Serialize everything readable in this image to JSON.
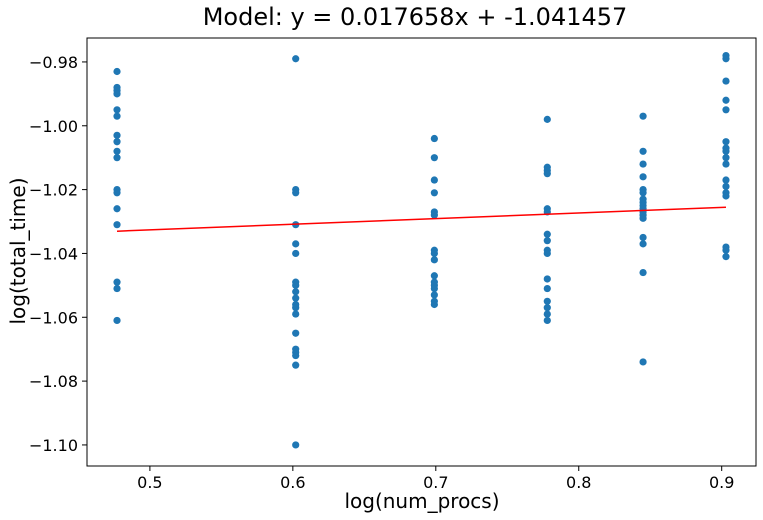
{
  "chart_data": {
    "type": "scatter",
    "title": "Model: y = 0.017658x + -1.041457",
    "xlabel": "log(num_procs)",
    "ylabel": "log(total_time)",
    "xlim": [
      0.456,
      0.924
    ],
    "ylim": [
      -1.1066,
      -0.9725
    ],
    "xticks": [
      0.5,
      0.6,
      0.7,
      0.8,
      0.9
    ],
    "xtick_labels": [
      "0.5",
      "0.6",
      "0.7",
      "0.8",
      "0.9"
    ],
    "yticks": [
      -1.1,
      -1.08,
      -1.06,
      -1.04,
      -1.02,
      -1.0,
      -0.98
    ],
    "ytick_labels": [
      "−1.10",
      "−1.08",
      "−1.06",
      "−1.04",
      "−1.02",
      "−1.00",
      "−0.98"
    ],
    "grid": false,
    "colors": {
      "points": "#1f77b4",
      "fit_line": "#ff0000"
    },
    "fit_line": {
      "slope": 0.017658,
      "intercept": -1.041457,
      "x": [
        0.477,
        0.903
      ]
    },
    "series": [
      {
        "type": "scatter",
        "points": [
          {
            "x": 0.477,
            "y": -0.983
          },
          {
            "x": 0.477,
            "y": -0.988
          },
          {
            "x": 0.477,
            "y": -0.989
          },
          {
            "x": 0.477,
            "y": -0.99
          },
          {
            "x": 0.477,
            "y": -0.995
          },
          {
            "x": 0.477,
            "y": -0.997
          },
          {
            "x": 0.477,
            "y": -1.003
          },
          {
            "x": 0.477,
            "y": -1.005
          },
          {
            "x": 0.477,
            "y": -1.008
          },
          {
            "x": 0.477,
            "y": -1.01
          },
          {
            "x": 0.477,
            "y": -1.02
          },
          {
            "x": 0.477,
            "y": -1.021
          },
          {
            "x": 0.477,
            "y": -1.026
          },
          {
            "x": 0.477,
            "y": -1.031
          },
          {
            "x": 0.477,
            "y": -1.049
          },
          {
            "x": 0.477,
            "y": -1.051
          },
          {
            "x": 0.477,
            "y": -1.061
          },
          {
            "x": 0.602,
            "y": -0.979
          },
          {
            "x": 0.602,
            "y": -1.02
          },
          {
            "x": 0.602,
            "y": -1.021
          },
          {
            "x": 0.602,
            "y": -1.031
          },
          {
            "x": 0.602,
            "y": -1.037
          },
          {
            "x": 0.602,
            "y": -1.04
          },
          {
            "x": 0.602,
            "y": -1.049
          },
          {
            "x": 0.602,
            "y": -1.05
          },
          {
            "x": 0.602,
            "y": -1.052
          },
          {
            "x": 0.602,
            "y": -1.054
          },
          {
            "x": 0.602,
            "y": -1.056
          },
          {
            "x": 0.602,
            "y": -1.057
          },
          {
            "x": 0.602,
            "y": -1.059
          },
          {
            "x": 0.602,
            "y": -1.065
          },
          {
            "x": 0.602,
            "y": -1.07
          },
          {
            "x": 0.602,
            "y": -1.071
          },
          {
            "x": 0.602,
            "y": -1.072
          },
          {
            "x": 0.602,
            "y": -1.075
          },
          {
            "x": 0.602,
            "y": -1.1
          },
          {
            "x": 0.699,
            "y": -1.004
          },
          {
            "x": 0.699,
            "y": -1.01
          },
          {
            "x": 0.699,
            "y": -1.017
          },
          {
            "x": 0.699,
            "y": -1.021
          },
          {
            "x": 0.699,
            "y": -1.027
          },
          {
            "x": 0.699,
            "y": -1.028
          },
          {
            "x": 0.699,
            "y": -1.039
          },
          {
            "x": 0.699,
            "y": -1.04
          },
          {
            "x": 0.699,
            "y": -1.042
          },
          {
            "x": 0.699,
            "y": -1.047
          },
          {
            "x": 0.699,
            "y": -1.049
          },
          {
            "x": 0.699,
            "y": -1.05
          },
          {
            "x": 0.699,
            "y": -1.051
          },
          {
            "x": 0.699,
            "y": -1.053
          },
          {
            "x": 0.699,
            "y": -1.055
          },
          {
            "x": 0.699,
            "y": -1.056
          },
          {
            "x": 0.778,
            "y": -0.998
          },
          {
            "x": 0.778,
            "y": -1.013
          },
          {
            "x": 0.778,
            "y": -1.014
          },
          {
            "x": 0.778,
            "y": -1.015
          },
          {
            "x": 0.778,
            "y": -1.026
          },
          {
            "x": 0.778,
            "y": -1.027
          },
          {
            "x": 0.778,
            "y": -1.034
          },
          {
            "x": 0.778,
            "y": -1.036
          },
          {
            "x": 0.778,
            "y": -1.039
          },
          {
            "x": 0.778,
            "y": -1.04
          },
          {
            "x": 0.778,
            "y": -1.048
          },
          {
            "x": 0.778,
            "y": -1.051
          },
          {
            "x": 0.778,
            "y": -1.055
          },
          {
            "x": 0.778,
            "y": -1.057
          },
          {
            "x": 0.778,
            "y": -1.059
          },
          {
            "x": 0.778,
            "y": -1.061
          },
          {
            "x": 0.845,
            "y": -0.997
          },
          {
            "x": 0.845,
            "y": -1.008
          },
          {
            "x": 0.845,
            "y": -1.012
          },
          {
            "x": 0.845,
            "y": -1.016
          },
          {
            "x": 0.845,
            "y": -1.02
          },
          {
            "x": 0.845,
            "y": -1.021
          },
          {
            "x": 0.845,
            "y": -1.023
          },
          {
            "x": 0.845,
            "y": -1.024
          },
          {
            "x": 0.845,
            "y": -1.025
          },
          {
            "x": 0.845,
            "y": -1.026
          },
          {
            "x": 0.845,
            "y": -1.027
          },
          {
            "x": 0.845,
            "y": -1.028
          },
          {
            "x": 0.845,
            "y": -1.029
          },
          {
            "x": 0.845,
            "y": -1.035
          },
          {
            "x": 0.845,
            "y": -1.037
          },
          {
            "x": 0.845,
            "y": -1.046
          },
          {
            "x": 0.845,
            "y": -1.074
          },
          {
            "x": 0.903,
            "y": -0.978
          },
          {
            "x": 0.903,
            "y": -0.979
          },
          {
            "x": 0.903,
            "y": -0.986
          },
          {
            "x": 0.903,
            "y": -0.992
          },
          {
            "x": 0.903,
            "y": -0.995
          },
          {
            "x": 0.903,
            "y": -1.005
          },
          {
            "x": 0.903,
            "y": -1.007
          },
          {
            "x": 0.903,
            "y": -1.008
          },
          {
            "x": 0.903,
            "y": -1.01
          },
          {
            "x": 0.903,
            "y": -1.012
          },
          {
            "x": 0.903,
            "y": -1.017
          },
          {
            "x": 0.903,
            "y": -1.019
          },
          {
            "x": 0.903,
            "y": -1.021
          },
          {
            "x": 0.903,
            "y": -1.022
          },
          {
            "x": 0.903,
            "y": -1.038
          },
          {
            "x": 0.903,
            "y": -1.039
          },
          {
            "x": 0.903,
            "y": -1.041
          }
        ]
      }
    ]
  }
}
